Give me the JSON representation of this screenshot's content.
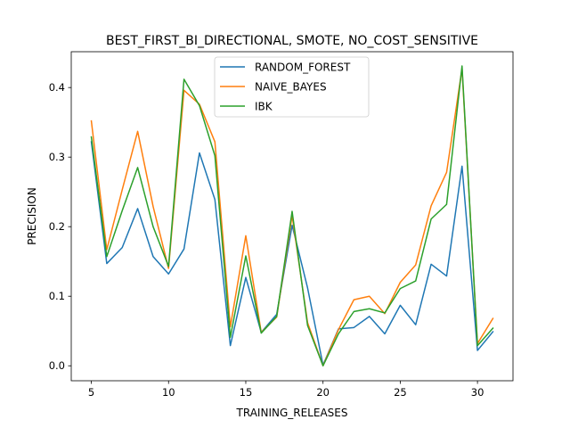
{
  "chart_data": {
    "type": "line",
    "title": "BEST_FIRST_BI_DIRECTIONAL, SMOTE, NO_COST_SENSITIVE",
    "xlabel": "TRAINING_RELEASES",
    "ylabel": "PRECISION",
    "xlim": [
      3.7,
      32.3
    ],
    "ylim": [
      -0.0215,
      0.4515
    ],
    "xticks": [
      5,
      10,
      15,
      20,
      25,
      30
    ],
    "xtick_labels": [
      "5",
      "10",
      "15",
      "20",
      "25",
      "30"
    ],
    "yticks": [
      0.0,
      0.1,
      0.2,
      0.3,
      0.4
    ],
    "ytick_labels": [
      "0.0",
      "0.1",
      "0.2",
      "0.3",
      "0.4"
    ],
    "grid": false,
    "legend_position": "top-center",
    "x": [
      5,
      6,
      7,
      8,
      9,
      10,
      11,
      12,
      13,
      14,
      15,
      16,
      17,
      18,
      19,
      20,
      21,
      22,
      23,
      24,
      25,
      26,
      27,
      28,
      29,
      30,
      31
    ],
    "series": [
      {
        "name": "RANDOM_FOREST",
        "color": "#1f77b4",
        "values": [
          0.322,
          0.147,
          0.17,
          0.226,
          0.157,
          0.132,
          0.168,
          0.306,
          0.239,
          0.029,
          0.127,
          0.048,
          0.074,
          0.202,
          0.112,
          0.001,
          0.053,
          0.055,
          0.071,
          0.046,
          0.087,
          0.059,
          0.146,
          0.129,
          0.287,
          0.022,
          0.049
        ]
      },
      {
        "name": "NAIVE_BAYES",
        "color": "#ff7f0e",
        "values": [
          0.352,
          0.167,
          0.253,
          0.337,
          0.229,
          0.14,
          0.396,
          0.376,
          0.322,
          0.056,
          0.187,
          0.048,
          0.07,
          0.216,
          0.062,
          0.0,
          0.052,
          0.095,
          0.1,
          0.075,
          0.12,
          0.145,
          0.23,
          0.278,
          0.427,
          0.032,
          0.068
        ]
      },
      {
        "name": "IBK",
        "color": "#2ca02c",
        "values": [
          0.329,
          0.157,
          0.223,
          0.285,
          0.2,
          0.143,
          0.412,
          0.374,
          0.302,
          0.041,
          0.158,
          0.047,
          0.071,
          0.222,
          0.058,
          0.0,
          0.046,
          0.078,
          0.082,
          0.076,
          0.111,
          0.122,
          0.211,
          0.232,
          0.431,
          0.029,
          0.054
        ]
      }
    ]
  }
}
